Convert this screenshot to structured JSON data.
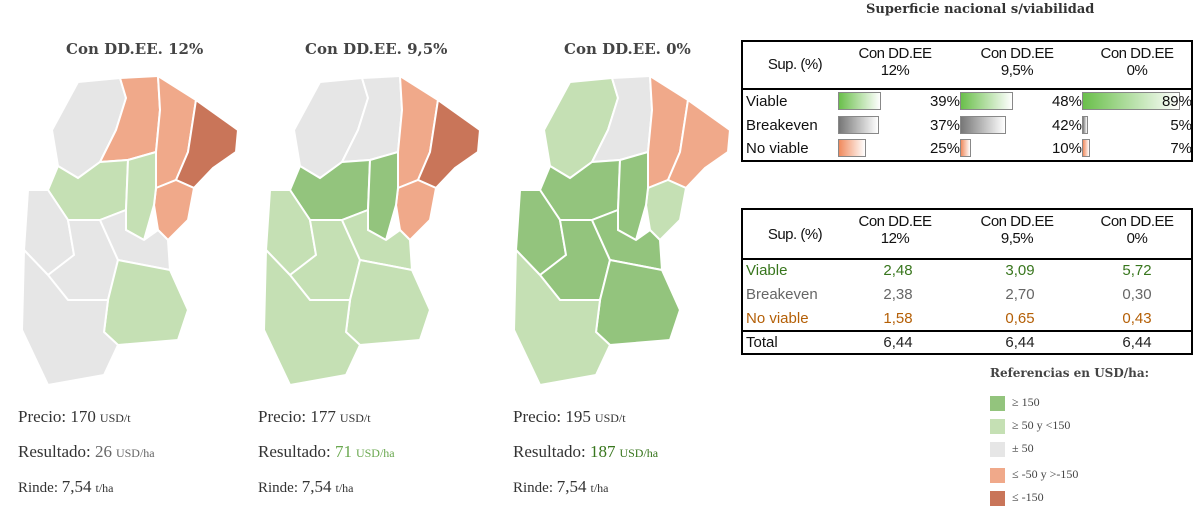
{
  "colors": {
    "ge150": "#93c47d",
    "ge50": "#c5e0b4",
    "pm50": "#e6e6e6",
    "le_50": "#f0a98a",
    "le_150": "#c97559"
  },
  "maps": [
    {
      "title": "Con DD.EE. 12%",
      "precio_label": "Precio:",
      "precio_value": "170",
      "precio_unit": "USD/t",
      "resultado_label": "Resultado:",
      "resultado_value": "26",
      "resultado_unit": "USD/ha",
      "rinde_label": "Rinde:",
      "rinde_value": "7,54",
      "rinde_unit": "t/ha",
      "regions": [
        "pm50",
        "le_50",
        "le_50",
        "le_150",
        "ge50",
        "le_50",
        "ge50",
        "pm50",
        "pm50",
        "pm50",
        "ge50",
        "pm50"
      ]
    },
    {
      "title": "Con DD.EE. 9,5%",
      "precio_label": "Precio:",
      "precio_value": "177",
      "precio_unit": "USD/t",
      "resultado_label": "Resultado:",
      "resultado_value": "71",
      "resultado_unit": "USD/ha",
      "rinde_label": "Rinde:",
      "rinde_value": "7,54",
      "rinde_unit": "t/ha",
      "regions": [
        "pm50",
        "pm50",
        "le_50",
        "le_150",
        "ge150",
        "le_50",
        "ge150",
        "ge50",
        "ge50",
        "ge50",
        "ge50",
        "ge50"
      ]
    },
    {
      "title": "Con DD.EE. 0%",
      "precio_label": "Precio:",
      "precio_value": "195",
      "precio_unit": "USD/t",
      "resultado_label": "Resultado:",
      "resultado_value": "187",
      "resultado_unit": "USD/ha",
      "rinde_label": "Rinde:",
      "rinde_value": "7,54",
      "rinde_unit": "t/ha",
      "regions": [
        "ge50",
        "pm50",
        "le_50",
        "le_50",
        "ge150",
        "ge50",
        "ge150",
        "ge150",
        "ge150",
        "ge150",
        "ge150",
        "ge50"
      ]
    }
  ],
  "table1": {
    "title": "Superficie nacional s/viabilidad",
    "header": "Sup. (%)",
    "columns": [
      {
        "line1": "Con DD.EE",
        "line2": "12%"
      },
      {
        "line1": "Con DD.EE",
        "line2": "9,5%"
      },
      {
        "line1": "Con DD.EE",
        "line2": "0%"
      }
    ],
    "rows": [
      {
        "label": "Viable",
        "values": [
          "39%",
          "48%",
          "89%"
        ]
      },
      {
        "label": "Breakeven",
        "values": [
          "37%",
          "42%",
          "5%"
        ]
      },
      {
        "label": "No viable",
        "values": [
          "25%",
          "10%",
          "7%"
        ]
      }
    ]
  },
  "table2": {
    "header": "Sup. (%)",
    "columns": [
      {
        "line1": "Con DD.EE",
        "line2": "12%"
      },
      {
        "line1": "Con DD.EE",
        "line2": "9,5%"
      },
      {
        "line1": "Con DD.EE",
        "line2": "0%"
      }
    ],
    "rows": [
      {
        "label": "Viable",
        "values": [
          "2,48",
          "3,09",
          "5,72"
        ]
      },
      {
        "label": "Breakeven",
        "values": [
          "2,38",
          "2,70",
          "0,30"
        ]
      },
      {
        "label": "No viable",
        "values": [
          "1,58",
          "0,65",
          "0,43"
        ]
      },
      {
        "label": "Total",
        "values": [
          "6,44",
          "6,44",
          "6,44"
        ]
      }
    ]
  },
  "legend": {
    "title": "Referencias en USD/ha:",
    "items": [
      {
        "color": "#93c47d",
        "label": "≥ 150"
      },
      {
        "color": "#c5e0b4",
        "label": "≥ 50 y <150"
      },
      {
        "color": "#e6e6e6",
        "label": "± 50"
      },
      {
        "color": "#f0a98a",
        "label": "≤ -50 y >-150"
      },
      {
        "color": "#c97559",
        "label": "≤ -150"
      }
    ]
  },
  "chart_data": {
    "type": "table",
    "title": "Superficie nacional s/viabilidad",
    "categories": [
      "Con DD.EE 12%",
      "Con DD.EE 9,5%",
      "Con DD.EE 0%"
    ],
    "series": [
      {
        "name": "Viable",
        "values": [
          39,
          48,
          89
        ]
      },
      {
        "name": "Breakeven",
        "values": [
          37,
          42,
          5
        ]
      },
      {
        "name": "No viable",
        "values": [
          25,
          10,
          7
        ]
      }
    ],
    "series_ha": [
      {
        "name": "Viable",
        "values": [
          2.48,
          3.09,
          5.72
        ]
      },
      {
        "name": "Breakeven",
        "values": [
          2.38,
          2.7,
          0.3
        ]
      },
      {
        "name": "No viable",
        "values": [
          1.58,
          0.65,
          0.43
        ]
      },
      {
        "name": "Total",
        "values": [
          6.44,
          6.44,
          6.44
        ]
      }
    ],
    "bar_colors": [
      "#6abf4b",
      "#8a8a8a",
      "#f08a5d"
    ]
  }
}
